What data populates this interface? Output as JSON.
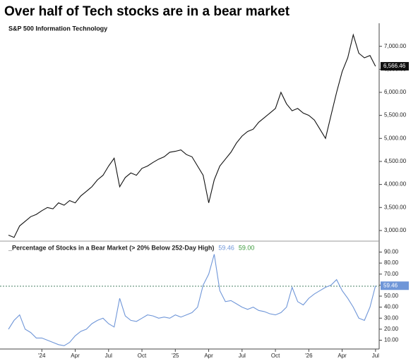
{
  "chart_data": [
    {
      "type": "line",
      "title": "Over half of Tech stocks are in a bear market",
      "x": [
        0,
        0.5,
        1,
        1.5,
        2,
        2.5,
        3,
        3.5,
        4,
        4.5,
        5,
        5.5,
        6,
        6.5,
        7,
        7.5,
        8,
        8.5,
        9,
        9.5,
        10,
        10.5,
        11,
        11.5,
        12,
        12.5,
        13,
        13.5,
        14,
        14.5,
        15,
        15.5,
        16,
        16.5,
        17,
        17.5,
        18,
        18.5,
        19,
        19.5,
        20,
        20.5,
        21,
        21.5,
        22,
        22.5,
        23,
        23.5,
        24,
        24.5,
        25,
        25.5,
        26,
        26.5,
        27,
        27.5,
        28,
        28.5,
        29,
        29.5,
        30,
        30.5,
        31,
        31.5,
        32,
        32.5,
        33
      ],
      "series": [
        {
          "name": "S&P 500 Information Technology",
          "color": "#111111",
          "values": [
            2900,
            2850,
            3100,
            3200,
            3300,
            3350,
            3430,
            3500,
            3470,
            3600,
            3550,
            3650,
            3600,
            3750,
            3850,
            3950,
            4100,
            4200,
            4400,
            4570,
            3950,
            4150,
            4250,
            4200,
            4350,
            4400,
            4480,
            4550,
            4600,
            4700,
            4720,
            4750,
            4650,
            4600,
            4400,
            4200,
            3600,
            4100,
            4400,
            4550,
            4700,
            4900,
            5050,
            5150,
            5200,
            5350,
            5450,
            5550,
            5650,
            6000,
            5750,
            5600,
            5650,
            5550,
            5500,
            5400,
            5200,
            5000,
            5500,
            6000,
            6450,
            6750,
            7250,
            6850,
            6750,
            6800,
            6566.46
          ]
        }
      ],
      "last_value_label": {
        "value": 6566.46,
        "label": "6,566.46"
      },
      "xlim": [
        0,
        33.2
      ],
      "ylim": [
        2800,
        7500
      ],
      "yticks": [
        {
          "value": 3000,
          "label": "3,000.00"
        },
        {
          "value": 3500,
          "label": "3,500.00"
        },
        {
          "value": 4000,
          "label": "4,000.00"
        },
        {
          "value": 4500,
          "label": "4,500.00"
        },
        {
          "value": 5000,
          "label": "5,000.00"
        },
        {
          "value": 5500,
          "label": "5,500.00"
        },
        {
          "value": 6000,
          "label": "6,000.00"
        },
        {
          "value": 6500,
          "label": "6,500.00"
        },
        {
          "value": 7000,
          "label": "7,000.00"
        }
      ]
    },
    {
      "type": "line",
      "x": [
        0,
        0.5,
        1,
        1.5,
        2,
        2.5,
        3,
        3.5,
        4,
        4.5,
        5,
        5.5,
        6,
        6.5,
        7,
        7.5,
        8,
        8.5,
        9,
        9.5,
        10,
        10.5,
        11,
        11.5,
        12,
        12.5,
        13,
        13.5,
        14,
        14.5,
        15,
        15.5,
        16,
        16.5,
        17,
        17.5,
        18,
        18.5,
        19,
        19.5,
        20,
        20.5,
        21,
        21.5,
        22,
        22.5,
        23,
        23.5,
        24,
        24.5,
        25,
        25.5,
        26,
        26.5,
        27,
        27.5,
        28,
        28.5,
        29,
        29.5,
        30,
        30.5,
        31,
        31.5,
        32,
        32.5,
        33
      ],
      "series": [
        {
          "name": "_Percentage of Stocks in a Bear Market (> 20% Below 252-Day High)",
          "color": "#6f96d8",
          "values": [
            20,
            28,
            33,
            20,
            17,
            12,
            12,
            10,
            8,
            6,
            5,
            8,
            14,
            18,
            20,
            25,
            28,
            30,
            25,
            22,
            48,
            32,
            28,
            27,
            30,
            33,
            32,
            30,
            31,
            30,
            33,
            31,
            33,
            35,
            40,
            60,
            70,
            88,
            55,
            45,
            46,
            43,
            40,
            38,
            40,
            37,
            36,
            34,
            33,
            35,
            40,
            58,
            45,
            42,
            48,
            52,
            55,
            58,
            60,
            65,
            55,
            48,
            40,
            30,
            28,
            40,
            59.46
          ]
        }
      ],
      "last_value_label": {
        "value": 59.46,
        "label": "59.46"
      },
      "reference_line": {
        "value": 59,
        "label": "59.00",
        "color": "#3a9a3a"
      },
      "xlim": [
        0,
        33.2
      ],
      "ylim": [
        2,
        98
      ],
      "yticks": [
        {
          "value": 10,
          "label": "10.00"
        },
        {
          "value": 20,
          "label": "20.00"
        },
        {
          "value": 30,
          "label": "30.00"
        },
        {
          "value": 40,
          "label": "40.00"
        },
        {
          "value": 50,
          "label": "50.00"
        },
        {
          "value": 60,
          "label": "60.00"
        },
        {
          "value": 70,
          "label": "70.00"
        },
        {
          "value": 80,
          "label": "80.00"
        },
        {
          "value": 90,
          "label": "90.00"
        }
      ],
      "xticks": [
        {
          "value": 3,
          "label": "'24"
        },
        {
          "value": 6,
          "label": "Apr"
        },
        {
          "value": 9,
          "label": "Jul"
        },
        {
          "value": 12,
          "label": "Oct"
        },
        {
          "value": 15,
          "label": "'25"
        },
        {
          "value": 18,
          "label": "Apr"
        },
        {
          "value": 21,
          "label": "Jul"
        },
        {
          "value": 24,
          "label": "Oct"
        },
        {
          "value": 27,
          "label": "'26"
        },
        {
          "value": 30,
          "label": "Apr"
        },
        {
          "value": 33,
          "label": "Jul"
        }
      ]
    }
  ]
}
